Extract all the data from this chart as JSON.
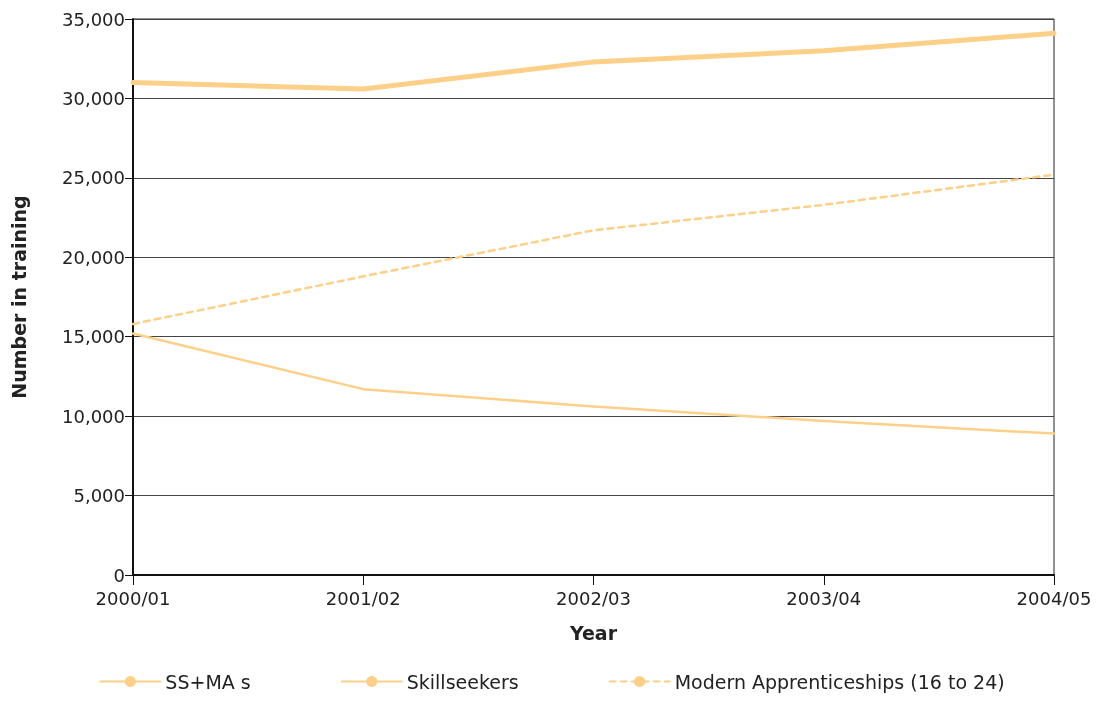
{
  "chart_data": {
    "type": "line",
    "xlabel": "Year",
    "ylabel": "Number in training",
    "categories": [
      "2000/01",
      "2001/02",
      "2002/03",
      "2003/04",
      "2004/05"
    ],
    "series": [
      {
        "name": "SS+MA s",
        "color": "#fdd08a",
        "line_style": "solid",
        "values": [
          31000,
          30600,
          32300,
          33000,
          34100
        ]
      },
      {
        "name": "Skillseekers",
        "color": "#fdd08a",
        "line_style": "solid",
        "values": [
          15200,
          11700,
          10600,
          9700,
          8900
        ]
      },
      {
        "name": "Modern Apprenticeships (16 to 24)",
        "color": "#fdd08a",
        "line_style": "dashed",
        "values": [
          15800,
          18800,
          21700,
          23300,
          25200
        ]
      }
    ],
    "ylim": [
      0,
      35000
    ],
    "yticks": [
      0,
      {
        "value": 5000,
        "label": "5,000"
      },
      {
        "value": 10000,
        "label": "10,000"
      },
      {
        "value": 15000,
        "label": "15,000"
      },
      {
        "value": 20000,
        "label": "20,000"
      },
      {
        "value": 25000,
        "label": "25,000"
      },
      {
        "value": 30000,
        "label": "30,000"
      },
      {
        "value": 35000,
        "label": "35,000"
      }
    ],
    "grid": "y",
    "legend": "bottom",
    "marker": "none"
  }
}
